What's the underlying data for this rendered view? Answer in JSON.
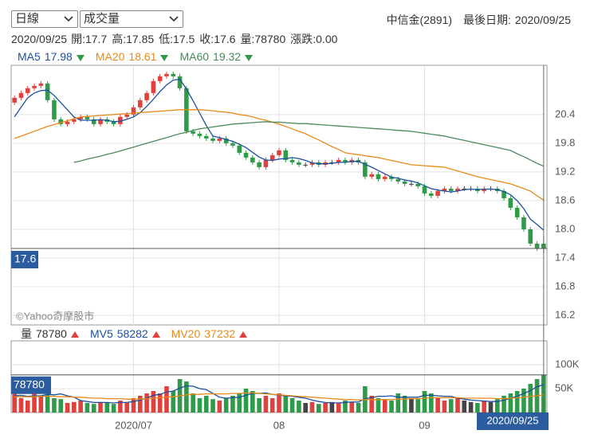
{
  "controls": {
    "period": "日線",
    "indicator": "成交量"
  },
  "header": {
    "stock": "中信金(2891)",
    "last_date_label": "最後日期:",
    "last_date": "2020/09/25"
  },
  "quote": {
    "date": "2020/09/25",
    "fields": [
      {
        "label": "開:",
        "value": 17.7
      },
      {
        "label": "高:",
        "value": 17.85
      },
      {
        "label": "低:",
        "value": 17.5
      },
      {
        "label": "收:",
        "value": 17.6
      },
      {
        "label": "量:",
        "value": 78780
      },
      {
        "label": "漲跌:",
        "value": "0.00"
      }
    ]
  },
  "watermark": "©Yahoo奇摩股市",
  "chart_data": [
    {
      "type": "candlestick",
      "up_color": "#e0413c",
      "down_color": "#2f9a48",
      "flat_color": "#444444",
      "grid": true,
      "ylim": [
        16.0,
        21.43
      ],
      "yticks": [
        20.4,
        19.8,
        19.2,
        18.6,
        {
          "value": 18,
          "label": "18.0"
        },
        17.4,
        16.8,
        16.2
      ],
      "open": [
        20.65,
        20.75,
        20.85,
        20.95,
        21.0,
        21.05,
        20.7,
        20.3,
        20.2,
        20.25,
        20.3,
        20.35,
        20.3,
        20.2,
        20.3,
        20.25,
        20.2,
        20.35,
        20.4,
        20.55,
        20.7,
        20.85,
        21.1,
        21.2,
        21.25,
        21.2,
        20.95,
        20.05,
        20.0,
        19.95,
        19.9,
        19.85,
        19.9,
        19.8,
        19.75,
        19.6,
        19.5,
        19.4,
        19.3,
        19.45,
        19.55,
        19.65,
        19.45,
        19.4,
        19.35,
        19.35,
        19.4,
        19.35,
        19.4,
        19.4,
        19.45,
        19.4,
        19.45,
        19.4,
        19.1,
        19.15,
        19.05,
        19.1,
        19.05,
        19.0,
        18.95,
        18.95,
        18.9,
        18.75,
        18.7,
        18.8,
        18.85,
        18.8,
        18.85,
        18.85,
        18.85,
        18.8,
        18.85,
        18.85,
        18.8,
        18.65,
        18.45,
        18.25,
        18.0,
        17.7,
        17.7
      ],
      "high": [
        20.8,
        20.9,
        21.0,
        21.05,
        21.1,
        21.1,
        20.75,
        20.35,
        20.3,
        20.35,
        20.4,
        20.4,
        20.35,
        20.35,
        20.35,
        20.3,
        20.4,
        20.45,
        20.6,
        20.75,
        20.9,
        21.15,
        21.25,
        21.3,
        21.3,
        21.25,
        21.0,
        20.1,
        20.05,
        20.0,
        19.95,
        19.95,
        19.95,
        19.85,
        19.8,
        19.65,
        19.55,
        19.45,
        19.5,
        19.6,
        19.7,
        19.7,
        19.5,
        19.45,
        19.4,
        19.45,
        19.45,
        19.45,
        19.45,
        19.5,
        19.5,
        19.5,
        19.5,
        19.45,
        19.2,
        19.2,
        19.15,
        19.15,
        19.1,
        19.05,
        19.0,
        19.0,
        18.95,
        18.8,
        18.85,
        18.9,
        18.9,
        18.9,
        18.9,
        18.9,
        18.9,
        18.9,
        18.9,
        18.9,
        18.85,
        18.7,
        18.5,
        18.3,
        18.05,
        17.75,
        17.85
      ],
      "low": [
        20.6,
        20.7,
        20.8,
        20.9,
        20.95,
        20.65,
        20.25,
        20.15,
        20.15,
        20.2,
        20.25,
        20.25,
        20.15,
        20.15,
        20.2,
        20.15,
        20.15,
        20.3,
        20.35,
        20.5,
        20.65,
        20.8,
        21.05,
        21.15,
        21.15,
        20.9,
        20.0,
        19.95,
        19.9,
        19.85,
        19.8,
        19.8,
        19.75,
        19.7,
        19.55,
        19.45,
        19.35,
        19.25,
        19.25,
        19.4,
        19.5,
        19.4,
        19.35,
        19.3,
        19.3,
        19.3,
        19.3,
        19.3,
        19.35,
        19.35,
        19.35,
        19.35,
        19.35,
        19.05,
        19.05,
        19.0,
        19.0,
        19.0,
        18.95,
        18.9,
        18.9,
        18.85,
        18.7,
        18.65,
        18.65,
        18.75,
        18.75,
        18.75,
        18.8,
        18.8,
        18.75,
        18.75,
        18.8,
        18.75,
        18.6,
        18.4,
        18.2,
        17.95,
        17.65,
        17.55,
        17.5
      ],
      "close": [
        20.75,
        20.85,
        20.95,
        21.0,
        21.05,
        20.7,
        20.3,
        20.2,
        20.25,
        20.3,
        20.35,
        20.3,
        20.2,
        20.3,
        20.25,
        20.2,
        20.35,
        20.4,
        20.55,
        20.7,
        20.85,
        21.1,
        21.2,
        21.25,
        21.2,
        20.95,
        20.05,
        20.0,
        19.95,
        19.9,
        19.85,
        19.9,
        19.8,
        19.75,
        19.6,
        19.5,
        19.4,
        19.3,
        19.45,
        19.55,
        19.65,
        19.45,
        19.4,
        19.35,
        19.35,
        19.4,
        19.35,
        19.4,
        19.4,
        19.45,
        19.4,
        19.45,
        19.4,
        19.1,
        19.15,
        19.05,
        19.1,
        19.05,
        19.0,
        18.95,
        18.95,
        18.9,
        18.75,
        18.7,
        18.8,
        18.85,
        18.8,
        18.85,
        18.85,
        18.85,
        18.8,
        18.85,
        18.85,
        18.8,
        18.65,
        18.45,
        18.25,
        18.0,
        17.7,
        17.6,
        17.6
      ],
      "series": [
        {
          "name": "MA5",
          "color": "#1c4f9c",
          "legend_value": 17.98,
          "trend": "down",
          "values": [
            20.35,
            20.55,
            20.75,
            20.85,
            20.9,
            20.91,
            20.8,
            20.65,
            20.5,
            20.35,
            20.28,
            20.28,
            20.28,
            20.29,
            20.28,
            20.25,
            20.26,
            20.3,
            20.35,
            20.44,
            20.57,
            20.72,
            20.88,
            21.02,
            21.12,
            21.14,
            20.93,
            20.69,
            20.43,
            20.17,
            19.95,
            19.92,
            19.88,
            19.84,
            19.78,
            19.71,
            19.61,
            19.51,
            19.45,
            19.44,
            19.47,
            19.48,
            19.5,
            19.48,
            19.44,
            19.39,
            19.37,
            19.37,
            19.38,
            19.4,
            19.4,
            19.42,
            19.42,
            19.36,
            19.3,
            19.23,
            19.16,
            19.09,
            19.07,
            19.03,
            19.01,
            18.97,
            18.91,
            18.85,
            18.82,
            18.8,
            18.78,
            18.8,
            18.83,
            18.84,
            18.83,
            18.84,
            18.84,
            18.83,
            18.79,
            18.72,
            18.6,
            18.43,
            18.21,
            18.1,
            17.98
          ]
        },
        {
          "name": "MA20",
          "color": "#e88a1a",
          "legend_value": 18.61,
          "trend": "down",
          "values": [
            19.9,
            19.95,
            20.0,
            20.05,
            20.1,
            20.15,
            20.19,
            20.23,
            20.27,
            20.31,
            20.35,
            20.36,
            20.37,
            20.38,
            20.39,
            20.4,
            20.41,
            20.42,
            20.43,
            20.44,
            20.45,
            20.46,
            20.47,
            20.48,
            20.49,
            20.5,
            20.5,
            20.5,
            20.5,
            20.49,
            20.48,
            20.46,
            20.45,
            20.43,
            20.4,
            20.38,
            20.35,
            20.31,
            20.28,
            20.24,
            20.2,
            20.15,
            20.1,
            20.05,
            20.0,
            19.93,
            19.87,
            19.8,
            19.73,
            19.67,
            19.6,
            19.58,
            19.56,
            19.54,
            19.52,
            19.5,
            19.47,
            19.44,
            19.41,
            19.38,
            19.35,
            19.34,
            19.33,
            19.32,
            19.31,
            19.3,
            19.26,
            19.22,
            19.18,
            19.14,
            19.1,
            19.07,
            19.04,
            19.01,
            18.98,
            18.95,
            18.9,
            18.85,
            18.8,
            18.7,
            18.61
          ]
        },
        {
          "name": "MA60",
          "color": "#4a8a5a",
          "legend_value": 19.32,
          "trend": "down",
          "values": [
            null,
            null,
            null,
            null,
            null,
            null,
            null,
            null,
            null,
            19.4,
            19.43,
            19.47,
            19.5,
            19.53,
            19.57,
            19.6,
            19.64,
            19.68,
            19.72,
            19.76,
            19.8,
            19.84,
            19.88,
            19.92,
            19.96,
            20.0,
            20.03,
            20.07,
            20.1,
            20.12,
            20.14,
            20.16,
            20.18,
            20.2,
            20.21,
            20.22,
            20.23,
            20.24,
            20.25,
            20.24,
            20.24,
            20.23,
            20.22,
            20.21,
            20.21,
            20.2,
            20.19,
            20.18,
            20.17,
            20.16,
            20.15,
            20.14,
            20.13,
            20.12,
            20.11,
            20.1,
            20.09,
            20.08,
            20.07,
            20.06,
            20.05,
            20.03,
            20.01,
            19.99,
            19.97,
            19.95,
            19.92,
            19.89,
            19.86,
            19.83,
            19.8,
            19.77,
            19.74,
            19.71,
            19.68,
            19.65,
            19.58,
            19.52,
            19.45,
            19.38,
            19.32
          ]
        }
      ]
    },
    {
      "type": "bar",
      "legend_name": "量",
      "legend_value": 78780,
      "trend": "up",
      "highlight_last": true,
      "grid": true,
      "ylim": [
        0,
        150000
      ],
      "yticks": [
        {
          "value": 100000,
          "label": "100K"
        },
        {
          "value": 50000,
          "label": "50K"
        }
      ],
      "categories": [
        null,
        null,
        null,
        null,
        null,
        null,
        null,
        null,
        null,
        null,
        null,
        null,
        null,
        null,
        null,
        null,
        null,
        null,
        "2020/07",
        null,
        null,
        null,
        null,
        null,
        null,
        null,
        null,
        null,
        null,
        null,
        null,
        null,
        null,
        null,
        null,
        null,
        null,
        null,
        null,
        null,
        "08",
        null,
        null,
        null,
        null,
        null,
        null,
        null,
        null,
        null,
        null,
        null,
        null,
        null,
        null,
        null,
        null,
        null,
        null,
        null,
        null,
        null,
        "09",
        null,
        null,
        null,
        null,
        null,
        null,
        null,
        null,
        null,
        null,
        null,
        null,
        null,
        null,
        null,
        null,
        null,
        "2020/09/25"
      ],
      "values": [
        45000,
        30000,
        25000,
        40000,
        35000,
        60000,
        30000,
        28000,
        20000,
        22000,
        25000,
        20000,
        18000,
        22000,
        20000,
        18000,
        25000,
        22000,
        30000,
        35000,
        40000,
        45000,
        40000,
        55000,
        45000,
        70000,
        65000,
        40000,
        30000,
        35000,
        28000,
        25000,
        30000,
        35000,
        40000,
        50000,
        45000,
        30000,
        35000,
        30000,
        40000,
        35000,
        30000,
        25000,
        20000,
        22000,
        18000,
        20000,
        22000,
        20000,
        25000,
        22000,
        20000,
        55000,
        35000,
        30000,
        28000,
        25000,
        40000,
        35000,
        30000,
        28000,
        45000,
        40000,
        30000,
        25000,
        28000,
        30000,
        25000,
        22000,
        20000,
        25000,
        22000,
        28000,
        35000,
        40000,
        45000,
        50000,
        60000,
        70000,
        78780
      ],
      "series": [
        {
          "name": "MV5",
          "color": "#1c4f9c",
          "legend_value": 58282,
          "trend": "up",
          "values": [
            35000,
            36000,
            34000,
            35000,
            35000,
            38000,
            37000,
            39000,
            35000,
            32000,
            25000,
            23000,
            21000,
            21000,
            21000,
            20000,
            21000,
            21000,
            23000,
            26000,
            30000,
            36000,
            38000,
            43000,
            45000,
            51000,
            56000,
            55000,
            50000,
            48000,
            40000,
            32000,
            30000,
            31000,
            32000,
            36000,
            40000,
            40000,
            41000,
            38000,
            36000,
            35000,
            34000,
            32000,
            30000,
            26000,
            23000,
            21000,
            20000,
            20000,
            21000,
            22000,
            22000,
            29000,
            31000,
            34000,
            34000,
            35000,
            32000,
            32000,
            32000,
            32000,
            36000,
            36000,
            35000,
            34000,
            34000,
            30000,
            28000,
            26000,
            25000,
            24000,
            23000,
            23000,
            26000,
            30000,
            34000,
            40000,
            46000,
            54000,
            58282
          ]
        },
        {
          "name": "MV20",
          "color": "#e88a1a",
          "legend_value": 37232,
          "trend": "up",
          "values": [
            33000,
            33000,
            33000,
            33000,
            34000,
            34000,
            34000,
            33000,
            33000,
            32000,
            32000,
            31000,
            30000,
            30000,
            29000,
            29000,
            29000,
            28000,
            28000,
            28000,
            29000,
            30000,
            31000,
            32000,
            33000,
            35000,
            37000,
            38000,
            38000,
            39000,
            39000,
            39000,
            39000,
            40000,
            40000,
            41000,
            41000,
            40000,
            39000,
            38000,
            37000,
            36000,
            35000,
            34000,
            33000,
            32000,
            31000,
            30000,
            29000,
            28000,
            27000,
            27000,
            26000,
            27000,
            27000,
            27000,
            27000,
            27000,
            28000,
            28000,
            29000,
            29000,
            30000,
            31000,
            31000,
            31000,
            31000,
            31000,
            30000,
            30000,
            30000,
            30000,
            30000,
            29000,
            29000,
            30000,
            31000,
            32000,
            34000,
            35000,
            37232
          ]
        }
      ]
    }
  ]
}
